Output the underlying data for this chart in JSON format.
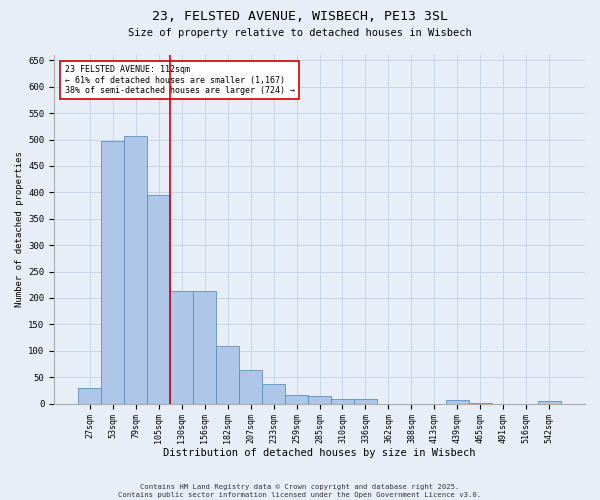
{
  "title_line1": "23, FELSTED AVENUE, WISBECH, PE13 3SL",
  "title_line2": "Size of property relative to detached houses in Wisbech",
  "xlabel": "Distribution of detached houses by size in Wisbech",
  "ylabel": "Number of detached properties",
  "categories": [
    "27sqm",
    "53sqm",
    "79sqm",
    "105sqm",
    "130sqm",
    "156sqm",
    "182sqm",
    "207sqm",
    "233sqm",
    "259sqm",
    "285sqm",
    "310sqm",
    "336sqm",
    "362sqm",
    "388sqm",
    "413sqm",
    "439sqm",
    "465sqm",
    "491sqm",
    "516sqm",
    "542sqm"
  ],
  "values": [
    30,
    497,
    507,
    395,
    213,
    213,
    110,
    63,
    38,
    17,
    14,
    9,
    9,
    0,
    0,
    0,
    7,
    2,
    0,
    0,
    4
  ],
  "bar_color": "#aec6e8",
  "bar_edge_color": "#5a8fc0",
  "vline_x": 3.5,
  "vline_color": "#cc0000",
  "annotation_text": "23 FELSTED AVENUE: 112sqm\n← 61% of detached houses are smaller (1,167)\n38% of semi-detached houses are larger (724) →",
  "annotation_box_color": "#ffffff",
  "annotation_box_edge": "#cc0000",
  "ylim": [
    0,
    660
  ],
  "yticks": [
    0,
    50,
    100,
    150,
    200,
    250,
    300,
    350,
    400,
    450,
    500,
    550,
    600,
    650
  ],
  "footer": "Contains HM Land Registry data © Crown copyright and database right 2025.\nContains public sector information licensed under the Open Government Licence v3.0.",
  "background_color": "#e8eef8",
  "grid_color": "#c8d4e8"
}
